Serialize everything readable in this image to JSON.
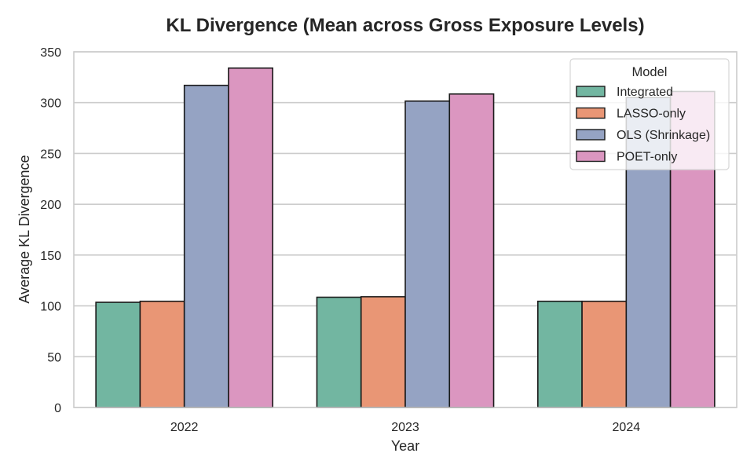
{
  "chart_data": {
    "type": "bar",
    "title": "KL Divergence (Mean across Gross Exposure Levels)",
    "xlabel": "Year",
    "ylabel": "Average KL Divergence",
    "categories": [
      "2022",
      "2023",
      "2024"
    ],
    "ylim": [
      0,
      350
    ],
    "yticks": [
      0,
      50,
      100,
      150,
      200,
      250,
      300,
      350
    ],
    "grid": "horizontal",
    "legend": {
      "title": "Model",
      "position": "top-right"
    },
    "series": [
      {
        "name": "Integrated",
        "color": "#72b6a1",
        "values": [
          103.5,
          108.5,
          104.5
        ]
      },
      {
        "name": "LASSO-only",
        "color": "#e99675",
        "values": [
          104.5,
          109.0,
          104.5
        ]
      },
      {
        "name": "OLS (Shrinkage)",
        "color": "#95a3c3",
        "values": [
          317.0,
          301.5,
          305.0
        ]
      },
      {
        "name": "POET-only",
        "color": "#db96c0",
        "values": [
          334.0,
          308.5,
          311.0
        ]
      }
    ]
  }
}
